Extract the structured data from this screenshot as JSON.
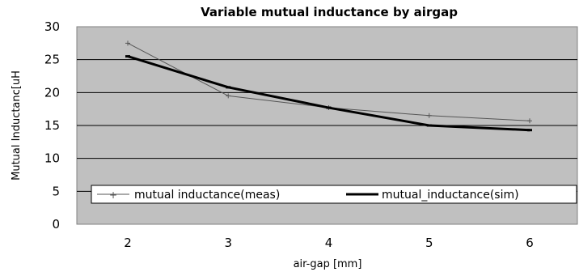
{
  "chart_data": {
    "type": "line",
    "title": "Variable mutual inductance by airgap",
    "xlabel": "air-gap [mm]",
    "ylabel": "Mutual Inductanc[uH",
    "categories": [
      "2",
      "3",
      "4",
      "5",
      "6"
    ],
    "ylim": [
      0,
      30
    ],
    "yticks": [
      "0",
      "5",
      "10",
      "15",
      "20",
      "25",
      "30"
    ],
    "grid": true,
    "legend_position": "bottom-inside",
    "series": [
      {
        "name": "mutual inductance(meas)",
        "values": [
          27.5,
          19.5,
          17.7,
          16.5,
          15.7
        ],
        "color": "#555555"
      },
      {
        "name": "mutual_inductance(sim)",
        "values": [
          25.5,
          20.8,
          17.7,
          15.0,
          14.3
        ],
        "color": "#000000"
      }
    ],
    "plot_background": "#c0c0c0"
  }
}
